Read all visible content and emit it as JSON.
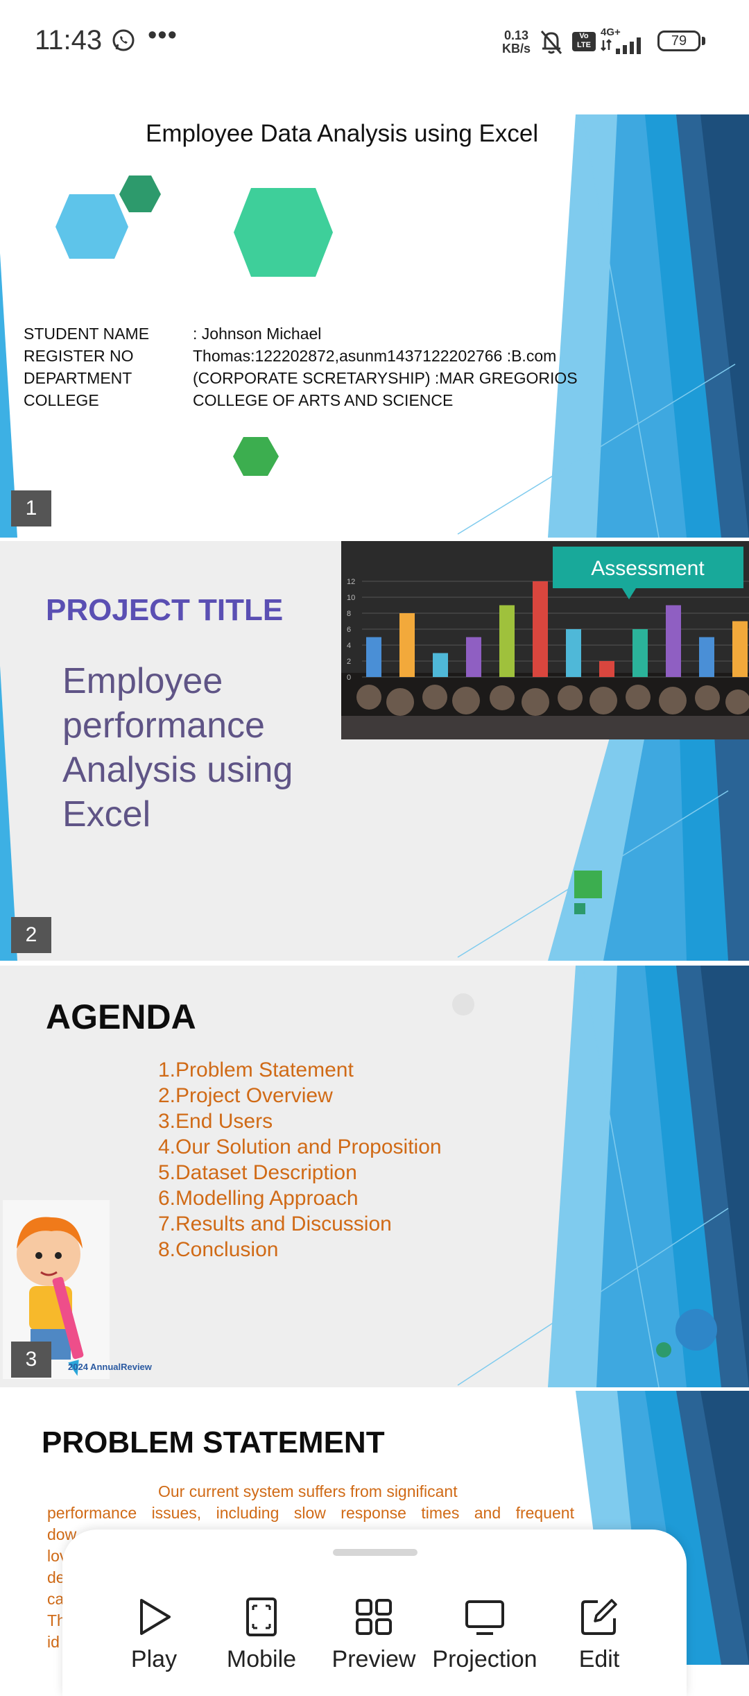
{
  "status_bar": {
    "time": "11:43",
    "net_speed_value": "0.13",
    "net_speed_unit": "KB/s",
    "volte": "Vo LTE",
    "network": "4G+",
    "battery": "79"
  },
  "slides": [
    {
      "number": "1",
      "title": "Employee Data Analysis using Excel",
      "labels": [
        "STUDENT NAME",
        "REGISTER NO",
        "DEPARTMENT",
        "COLLEGE"
      ],
      "values": [
        ": Johnson Michael",
        "Thomas:122202872,asunm1437122202766 :B.com",
        "(CORPORATE SCRETARYSHIP) :MAR GREGORIOS",
        "COLLEGE OF ARTS AND SCIENCE"
      ]
    },
    {
      "number": "2",
      "heading": "PROJECT TITLE",
      "body": [
        "Employee",
        "performance",
        "Analysis using",
        "Excel"
      ],
      "image": {
        "banner": "Assessment",
        "ticks": [
          "12",
          "10",
          "8",
          "6",
          "4",
          "2",
          "0"
        ],
        "bar_values": [
          5,
          8,
          3,
          5,
          9,
          12,
          6,
          2,
          6,
          9,
          5,
          7
        ]
      }
    },
    {
      "number": "3",
      "heading": "AGENDA",
      "items": [
        "1.Problem Statement",
        "2.Project Overview",
        "3.End Users",
        "4.Our Solution and Proposition",
        "5.Dataset Description",
        "6.Modelling Approach",
        "7.Results and Discussion",
        "8.Conclusion"
      ],
      "image_credit": "2024 AnnualReview"
    },
    {
      "number": "4",
      "heading": "PROBLEM STATEMENT",
      "body_lines": [
        "Our current system suffers from significant",
        "performance issues, including slow response times and frequent",
        "dow",
        "lov",
        "de",
        "ca",
        "Th",
        "id"
      ]
    }
  ],
  "bottom_sheet": {
    "actions": [
      {
        "label": "Play",
        "icon": "play-icon"
      },
      {
        "label": "Mobile",
        "icon": "mobile-view-icon"
      },
      {
        "label": "Preview",
        "icon": "grid-icon"
      },
      {
        "label": "Projection",
        "icon": "monitor-icon"
      },
      {
        "label": "Edit",
        "icon": "edit-icon"
      }
    ]
  },
  "colors": {
    "accent_blue": "#1e9bd7",
    "dark_blue": "#2a6496",
    "purple": "#5a4fb3",
    "orange": "#d06a16",
    "hex_green": "#3ecf9a",
    "hex_blue": "#5ec4ea"
  }
}
